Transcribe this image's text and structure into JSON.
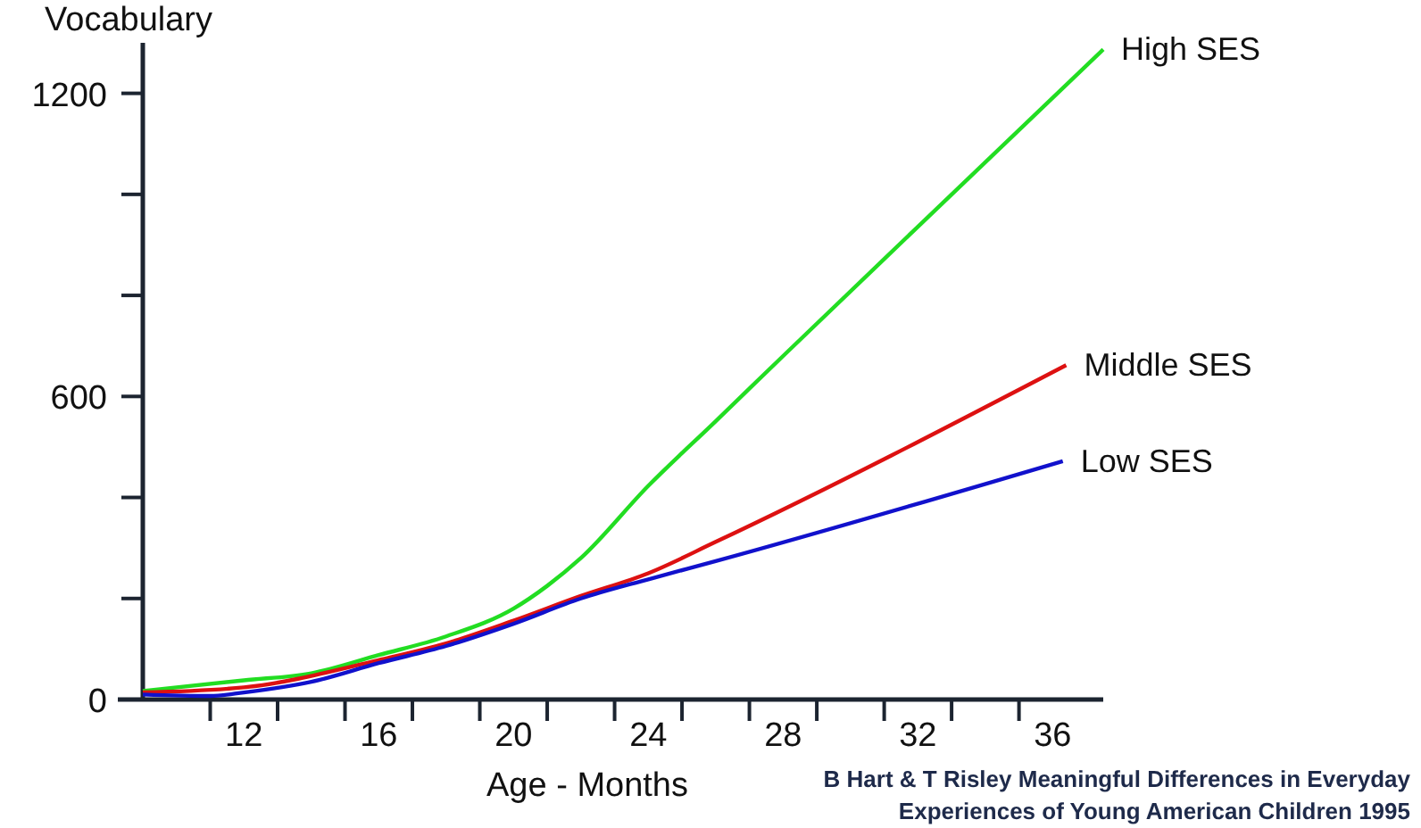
{
  "chart_data": {
    "type": "line",
    "ylabel": "Vocabulary",
    "xlabel": "Age - Months",
    "annotations": [
      "B Hart & T Risley Meaningful Differences in Everyday",
      "Experiences of Young American Children 1995"
    ],
    "xlim": [
      9,
      37.5
    ],
    "ylim": [
      0,
      1300
    ],
    "xticks": [
      {
        "value": 11,
        "label": null
      },
      12,
      {
        "value": 13,
        "label": null
      },
      {
        "value": 15,
        "label": null
      },
      16,
      {
        "value": 17,
        "label": null
      },
      {
        "value": 19,
        "label": null
      },
      20,
      {
        "value": 21,
        "label": null
      },
      {
        "value": 23,
        "label": null
      },
      24,
      {
        "value": 25,
        "label": null
      },
      {
        "value": 27,
        "label": null
      },
      28,
      {
        "value": 29,
        "label": null
      },
      {
        "value": 31,
        "label": null
      },
      32,
      {
        "value": 33,
        "label": null
      },
      {
        "value": 35,
        "label": null
      },
      36
    ],
    "yticks": [
      0,
      {
        "value": 200,
        "label": null
      },
      {
        "value": 400,
        "label": null
      },
      600,
      {
        "value": 800,
        "label": null
      },
      {
        "value": 1000,
        "label": null
      },
      1200
    ],
    "grid": false,
    "legend": false,
    "marker": "none",
    "series": [
      {
        "name": "High SES",
        "color": "#22dd22",
        "x": [
          9,
          12,
          14,
          16,
          18,
          20,
          21,
          22,
          24,
          26,
          28,
          32,
          37.5
        ],
        "values": [
          17,
          38,
          52,
          88,
          125,
          180,
          225,
          280,
          423,
          551,
          680,
          936,
          1287
        ]
      },
      {
        "name": "Middle SES",
        "color": "#dd1111",
        "x": [
          9,
          12,
          16,
          18,
          20,
          22,
          24,
          26,
          36.4
        ],
        "values": [
          14,
          24,
          78,
          111,
          156,
          205,
          250,
          312,
          662
        ]
      },
      {
        "name": "Low SES",
        "color": "#1111cc",
        "x": [
          9,
          11,
          12,
          14,
          16,
          18,
          20,
          22,
          24,
          26,
          36.3
        ],
        "values": [
          10,
          7,
          14,
          35,
          72,
          106,
          150,
          200,
          238,
          274,
          472
        ]
      }
    ]
  }
}
